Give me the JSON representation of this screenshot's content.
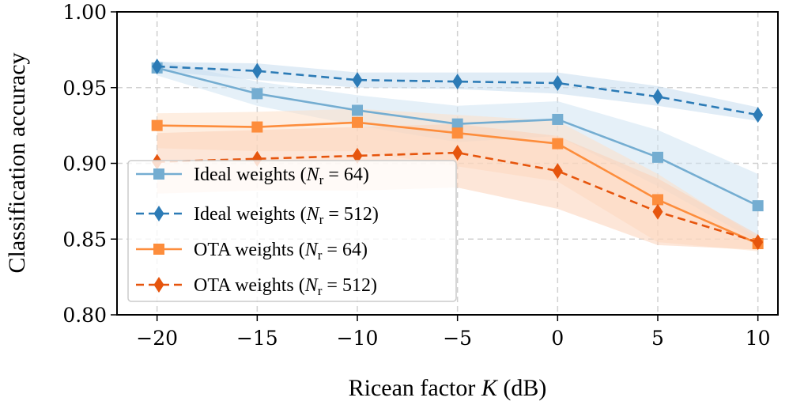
{
  "chart_data": {
    "type": "line",
    "title": "",
    "xlabel": "Ricean factor",
    "xlabel_var": "K",
    "xlabel_unit": "(dB)",
    "ylabel": "Classification accuracy",
    "x": [
      -20,
      -15,
      -10,
      -5,
      0,
      5,
      10
    ],
    "xticks": [
      -20,
      -15,
      -10,
      -5,
      0,
      5,
      10
    ],
    "xtick_labels": [
      "−20",
      "−15",
      "−10",
      "−5",
      "0",
      "5",
      "10"
    ],
    "yticks": [
      0.8,
      0.85,
      0.9,
      0.95,
      1.0
    ],
    "ytick_labels": [
      "0.80",
      "0.85",
      "0.90",
      "0.95",
      "1.00"
    ],
    "xlim": [
      -22,
      11
    ],
    "ylim": [
      0.8,
      1.0
    ],
    "grid": true,
    "legend_position": "lower-left",
    "series": [
      {
        "name": "Ideal weights (N_r = 64)",
        "legend_prefix": "Ideal weights (",
        "legend_var": "N",
        "legend_sub": "r",
        "legend_suffix": " = 64)",
        "values": [
          0.963,
          0.946,
          0.935,
          0.926,
          0.929,
          0.904,
          0.872
        ],
        "band_low": [
          0.958,
          0.938,
          0.925,
          0.914,
          0.918,
          0.885,
          0.848
        ],
        "band_high": [
          0.968,
          0.954,
          0.945,
          0.938,
          0.941,
          0.922,
          0.893
        ],
        "color": "#74add1",
        "band_color": "#cfe3f3",
        "marker": "square",
        "dash": "solid"
      },
      {
        "name": "Ideal weights (N_r = 512)",
        "legend_prefix": "Ideal weights (",
        "legend_var": "N",
        "legend_sub": "r",
        "legend_suffix": " = 512)",
        "values": [
          0.964,
          0.961,
          0.955,
          0.954,
          0.953,
          0.944,
          0.932
        ],
        "band_low": [
          0.961,
          0.955,
          0.95,
          0.949,
          0.946,
          0.938,
          0.928
        ],
        "band_high": [
          0.967,
          0.966,
          0.96,
          0.96,
          0.96,
          0.951,
          0.937
        ],
        "color": "#2c7bb6",
        "band_color": "#c6dcee",
        "marker": "diamond",
        "dash": "dashed"
      },
      {
        "name": "OTA weights (N_r = 64)",
        "legend_prefix": "OTA weights (",
        "legend_var": "N",
        "legend_sub": "r",
        "legend_suffix": " = 64)",
        "values": [
          0.925,
          0.924,
          0.927,
          0.92,
          0.913,
          0.876,
          0.847
        ],
        "band_low": [
          0.91,
          0.908,
          0.908,
          0.898,
          0.888,
          0.848,
          0.842
        ],
        "band_high": [
          0.933,
          0.934,
          0.936,
          0.932,
          0.928,
          0.893,
          0.851
        ],
        "color": "#fd8d3c",
        "band_color": "#fde0c8",
        "marker": "square",
        "dash": "solid"
      },
      {
        "name": "OTA weights (N_r = 512)",
        "legend_prefix": "OTA weights (",
        "legend_var": "N",
        "legend_sub": "r",
        "legend_suffix": " = 512)",
        "values": [
          0.901,
          0.903,
          0.905,
          0.907,
          0.895,
          0.868,
          0.848
        ],
        "band_low": [
          0.88,
          0.882,
          0.882,
          0.884,
          0.87,
          0.846,
          0.843
        ],
        "band_high": [
          0.92,
          0.922,
          0.924,
          0.926,
          0.918,
          0.89,
          0.853
        ],
        "color": "#e6550d",
        "band_color": "#fbd2b8",
        "marker": "diamond",
        "dash": "dashed"
      }
    ]
  }
}
